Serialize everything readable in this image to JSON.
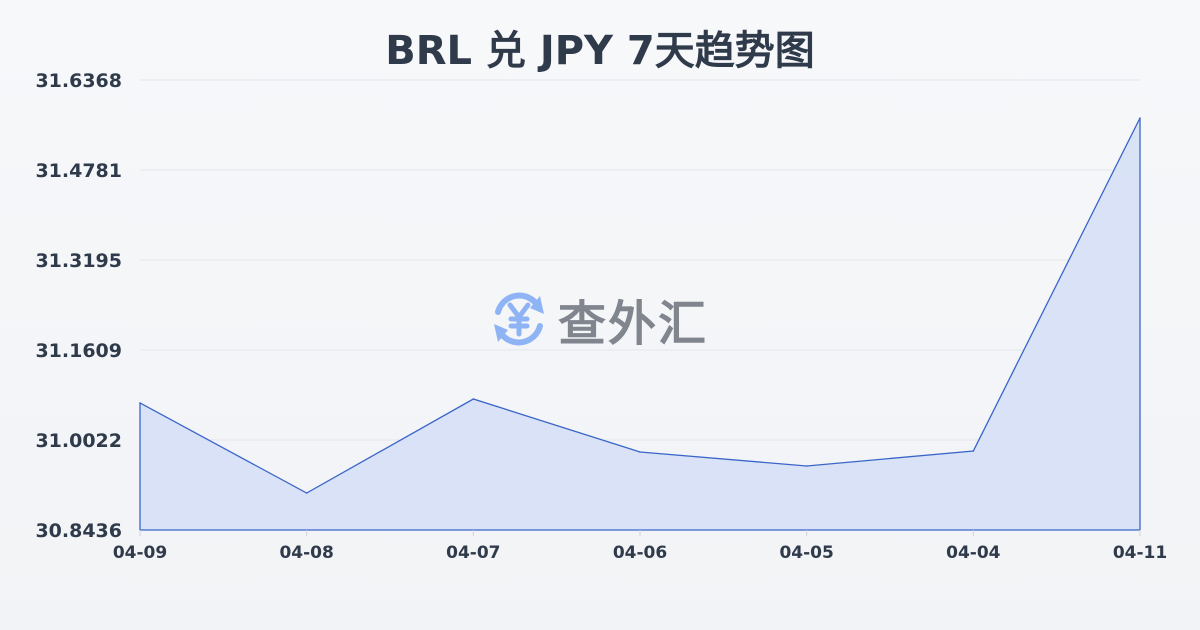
{
  "chart_data": {
    "type": "area",
    "title": "BRL 兑 JPY 7天趋势图",
    "categories": [
      "04-09",
      "04-08",
      "04-07",
      "04-06",
      "04-05",
      "04-04",
      "04-11"
    ],
    "series": [
      {
        "values": [
          31.0675,
          30.9088,
          31.0745,
          30.9811,
          30.9564,
          30.9829,
          31.5698
        ]
      }
    ],
    "yticks": [
      "31.6368",
      "31.4781",
      "31.3195",
      "31.1609",
      "31.0022",
      "30.8436"
    ],
    "ylim": [
      30.8436,
      31.6368
    ],
    "grid": true,
    "line_color": "#3a66c8",
    "fill_color": "#d6e0f5"
  },
  "watermark": {
    "text": "查外汇",
    "icon": "yen-exchange-icon",
    "icon_color": "#8fb4f5"
  }
}
